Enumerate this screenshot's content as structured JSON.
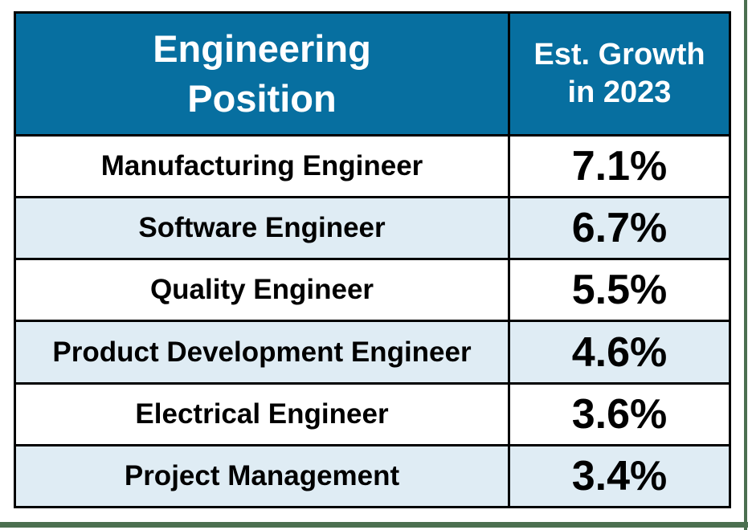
{
  "table": {
    "header": {
      "position_label": "Engineering\nPosition",
      "growth_label": "Est. Growth\nin 2023"
    },
    "rows": [
      {
        "position": "Manufacturing Engineer",
        "growth": "7.1%"
      },
      {
        "position": "Software Engineer",
        "growth": "6.7%"
      },
      {
        "position": "Quality Engineer",
        "growth": "5.5%"
      },
      {
        "position": "Product Development Engineer",
        "growth": "4.6%"
      },
      {
        "position": "Electrical Engineer",
        "growth": "3.6%"
      },
      {
        "position": "Project Management",
        "growth": "3.4%"
      }
    ],
    "colors": {
      "header_bg": "#076FA0",
      "header_text": "#FFFFFF",
      "stripe_bg": "#DFECF4",
      "row_bg": "#FFFFFF",
      "grid": "#000000",
      "frame_edge": "#4B6F50"
    }
  },
  "chart_data": {
    "type": "table",
    "title": "",
    "columns": [
      "Engineering Position",
      "Est. Growth in 2023"
    ],
    "rows": [
      [
        "Manufacturing Engineer",
        "7.1%"
      ],
      [
        "Software Engineer",
        "6.7%"
      ],
      [
        "Quality Engineer",
        "5.5%"
      ],
      [
        "Product Development Engineer",
        "4.6%"
      ],
      [
        "Electrical Engineer",
        "3.6%"
      ],
      [
        "Project Management",
        "3.4%"
      ]
    ],
    "values_numeric_pct": [
      7.1,
      6.7,
      5.5,
      4.6,
      3.6,
      3.4
    ]
  }
}
